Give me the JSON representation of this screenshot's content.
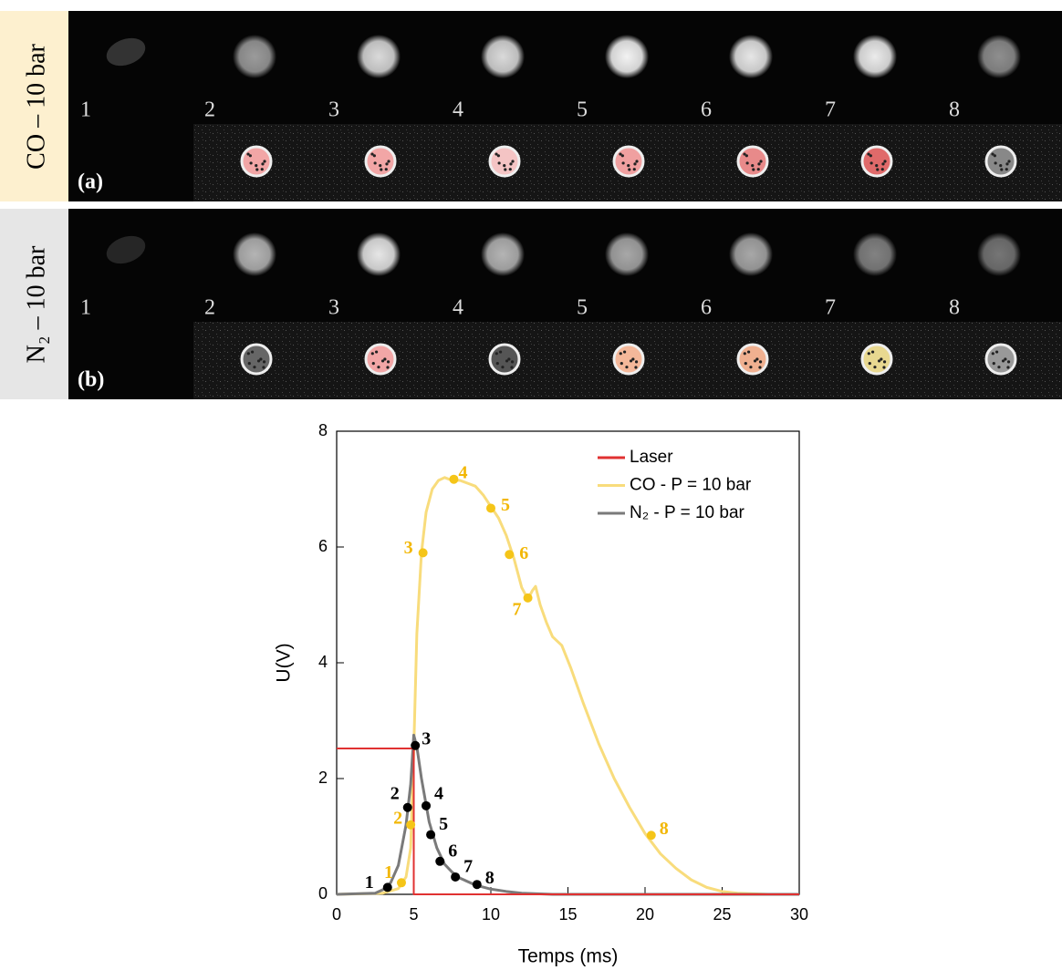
{
  "panels": [
    {
      "label": "CO – 10 bar",
      "tag": "(a)",
      "frames": [
        "1",
        "2",
        "3",
        "4",
        "5",
        "6",
        "7",
        "8"
      ]
    },
    {
      "label": "N₂ – 10 bar",
      "tag": "(b)",
      "frames": [
        "1",
        "2",
        "3",
        "4",
        "5",
        "6",
        "7",
        "8"
      ]
    }
  ],
  "chart_data": {
    "type": "line",
    "x_label": "Temps (ms)",
    "y_label": "U(V)",
    "xlim": [
      0,
      30
    ],
    "ylim": [
      0,
      8
    ],
    "xticks": [
      0,
      5,
      10,
      15,
      20,
      25,
      30
    ],
    "yticks": [
      0,
      2,
      4,
      6,
      8
    ],
    "legend": "upper right",
    "series": [
      {
        "name": "Laser",
        "color": "#e03131",
        "x": [
          0,
          5,
          5,
          30
        ],
        "values": [
          2.52,
          2.52,
          0,
          0
        ]
      },
      {
        "name": "CO - P = 10 bar",
        "color": "#f8dc7c",
        "x": [
          0,
          3,
          4,
          4.5,
          4.8,
          5,
          5.2,
          5.5,
          5.8,
          6.2,
          6.6,
          7,
          7.5,
          8,
          8.5,
          9,
          9.5,
          10,
          10.5,
          11,
          11.5,
          12,
          12.4,
          12.7,
          12.9,
          13.2,
          13.6,
          14,
          14.6,
          15.2,
          16,
          17,
          18,
          19,
          20,
          21,
          22,
          23,
          24,
          25,
          26,
          27,
          28,
          30
        ],
        "values": [
          0,
          0.02,
          0.1,
          0.3,
          0.8,
          2.5,
          4.5,
          5.9,
          6.6,
          7.0,
          7.15,
          7.2,
          7.15,
          7.15,
          7.1,
          7.05,
          6.9,
          6.7,
          6.5,
          6.2,
          5.8,
          5.3,
          5.1,
          5.25,
          5.32,
          5.0,
          4.7,
          4.45,
          4.3,
          3.9,
          3.3,
          2.6,
          2.0,
          1.5,
          1.05,
          0.7,
          0.45,
          0.25,
          0.12,
          0.05,
          0.02,
          0.01,
          0,
          0
        ],
        "markers": {
          "color": "#f5c518",
          "labels": [
            "1",
            "2",
            "3",
            "4",
            "5",
            "6",
            "7",
            "8"
          ],
          "x": [
            4.2,
            4.8,
            5.6,
            7.6,
            10,
            11.2,
            12.4,
            20.4
          ],
          "values": [
            0.2,
            1.2,
            5.9,
            7.17,
            6.67,
            5.87,
            5.12,
            1.02
          ]
        }
      },
      {
        "name": "N₂ - P = 10 bar",
        "color": "#7a7a7a",
        "x": [
          0,
          2.5,
          3,
          3.5,
          4,
          4.5,
          4.8,
          5,
          5.2,
          5.5,
          6,
          6.5,
          7,
          7.5,
          8,
          9,
          10,
          11,
          12,
          14,
          30
        ],
        "values": [
          0,
          0.02,
          0.08,
          0.2,
          0.5,
          1.2,
          1.9,
          2.75,
          2.55,
          2.0,
          1.25,
          0.8,
          0.52,
          0.38,
          0.28,
          0.16,
          0.09,
          0.05,
          0.02,
          0,
          0
        ],
        "markers": {
          "color": "#000000",
          "labels": [
            "1",
            "2",
            "3",
            "4",
            "5",
            "6",
            "7",
            "8"
          ],
          "x": [
            3.3,
            4.6,
            5.1,
            5.8,
            6.1,
            6.7,
            7.7,
            9.1
          ],
          "values": [
            0.12,
            1.5,
            2.57,
            1.53,
            1.03,
            0.57,
            0.3,
            0.17
          ]
        }
      }
    ]
  }
}
